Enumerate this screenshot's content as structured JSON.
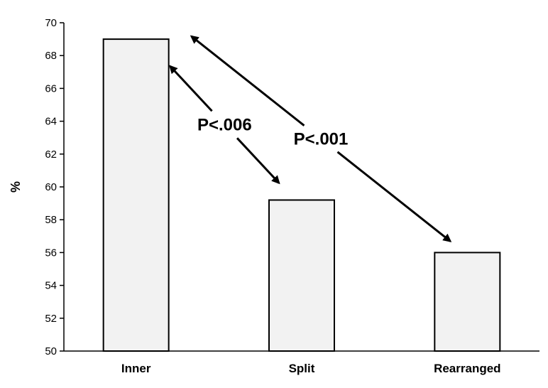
{
  "chart_data": {
    "type": "bar",
    "categories": [
      "Inner",
      "Split",
      "Rearranged"
    ],
    "values": [
      69,
      59.2,
      56
    ],
    "ylabel": "%",
    "xlabel": "",
    "ylim": [
      50,
      70
    ],
    "yticks": [
      50,
      52,
      54,
      56,
      58,
      60,
      62,
      64,
      66,
      68,
      70
    ],
    "bar_color": "#f2f2f2",
    "annotations": [
      {
        "text": "P<.006",
        "from": "Inner",
        "to": "Split"
      },
      {
        "text": "P<.001",
        "from": "Inner",
        "to": "Rearranged"
      }
    ]
  }
}
